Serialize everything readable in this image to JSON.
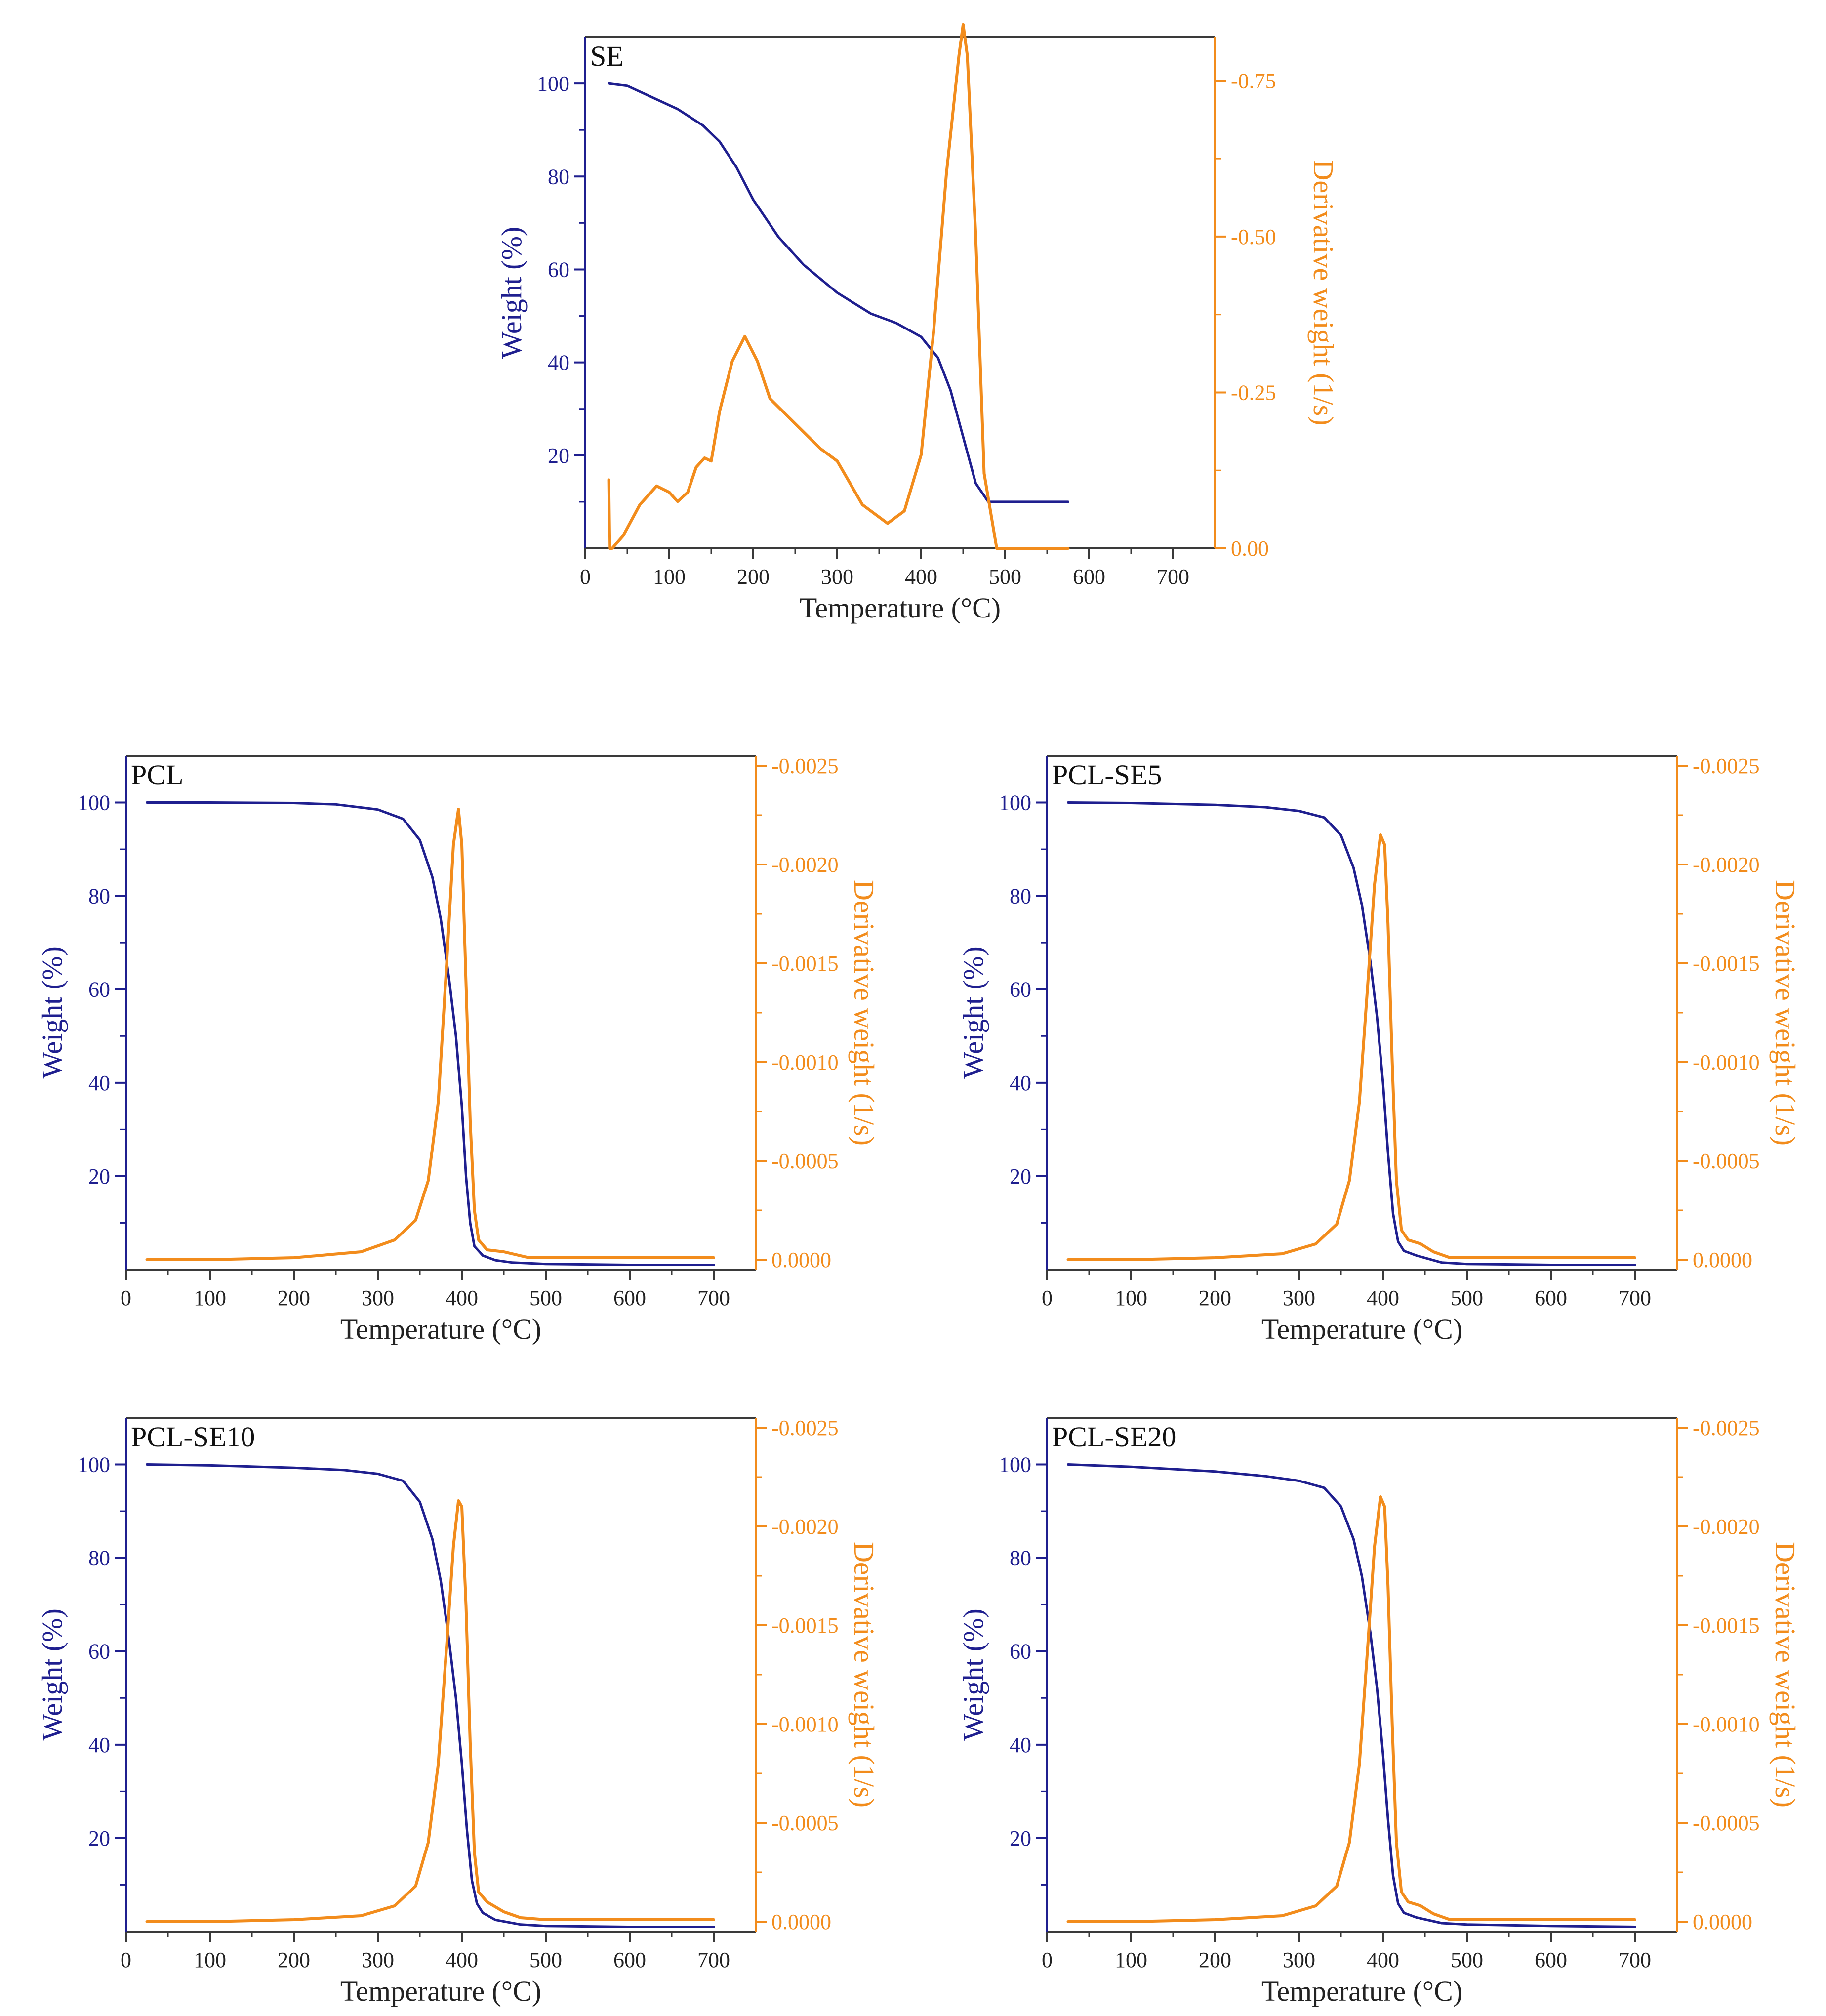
{
  "figure": {
    "colors": {
      "weight": "#1f1f8f",
      "derivative": "#f28c1c",
      "axis": "#3a3a3a"
    }
  },
  "chart_data": [
    {
      "type": "line",
      "id": "se",
      "panel_label": "SE",
      "xlabel": "Temperature (°C)",
      "ylabel_left": "Weight (%)",
      "ylabel_right": "Derivative weight (1/s)",
      "xlim": [
        0,
        750
      ],
      "ylim_left": [
        0,
        110
      ],
      "ylim_right": [
        0,
        -0.82
      ],
      "x_ticks": [
        0,
        100,
        200,
        300,
        400,
        500,
        600,
        700
      ],
      "x_tick_labels": [
        "0",
        "100",
        "200",
        "300",
        "400",
        "500",
        "600",
        "700"
      ],
      "y_left_ticks": [
        20,
        40,
        60,
        80,
        100
      ],
      "y_left_tick_labels": [
        "20",
        "40",
        "60",
        "80",
        "100"
      ],
      "y_right_ticks": [
        0,
        -0.25,
        -0.5,
        -0.75
      ],
      "y_right_tick_labels": [
        "0.00",
        "-0.25",
        "-0.50",
        "-0.75"
      ],
      "series": [
        {
          "name": "Weight",
          "axis": "left",
          "x": [
            28,
            50,
            80,
            110,
            140,
            160,
            180,
            200,
            230,
            260,
            300,
            340,
            370,
            400,
            420,
            435,
            450,
            465,
            480,
            500,
            540,
            575
          ],
          "y": [
            100,
            99.5,
            97,
            94.5,
            91,
            87.5,
            82,
            75,
            67,
            61,
            55,
            50.5,
            48.5,
            45.5,
            41,
            34,
            24,
            14,
            10,
            10,
            10,
            10
          ]
        },
        {
          "name": "Derivative weight",
          "axis": "right",
          "x": [
            28,
            29,
            32,
            45,
            65,
            85,
            100,
            110,
            122,
            132,
            142,
            150,
            160,
            175,
            190,
            205,
            220,
            250,
            280,
            300,
            330,
            360,
            380,
            400,
            415,
            430,
            445,
            450,
            455,
            465,
            475,
            490,
            520,
            575
          ],
          "y": [
            -0.11,
            0.0,
            0.0,
            -0.02,
            -0.07,
            -0.1,
            -0.09,
            -0.075,
            -0.09,
            -0.13,
            -0.145,
            -0.14,
            -0.22,
            -0.3,
            -0.34,
            -0.3,
            -0.24,
            -0.2,
            -0.16,
            -0.14,
            -0.07,
            -0.04,
            -0.06,
            -0.15,
            -0.35,
            -0.6,
            -0.79,
            -0.84,
            -0.79,
            -0.5,
            -0.12,
            0.0,
            0.0,
            0.0
          ]
        }
      ]
    },
    {
      "type": "line",
      "id": "pcl",
      "panel_label": "PCL",
      "xlabel": "Temperature (°C)",
      "ylabel_left": "Weight (%)",
      "ylabel_right": "Derivative weight (1/s)",
      "xlim": [
        0,
        750
      ],
      "ylim_left": [
        0,
        110
      ],
      "ylim_right": [
        5e-05,
        -0.00255
      ],
      "x_ticks": [
        0,
        100,
        200,
        300,
        400,
        500,
        600,
        700
      ],
      "x_tick_labels": [
        "0",
        "100",
        "200",
        "300",
        "400",
        "500",
        "600",
        "700"
      ],
      "y_left_ticks": [
        20,
        40,
        60,
        80,
        100
      ],
      "y_left_tick_labels": [
        "20",
        "40",
        "60",
        "80",
        "100"
      ],
      "y_right_ticks": [
        0,
        -0.0005,
        -0.001,
        -0.0015,
        -0.002,
        -0.0025
      ],
      "y_right_tick_labels": [
        "0.0000",
        "-0.0005",
        "-0.0010",
        "-0.0015",
        "-0.0020",
        "-0.0025"
      ],
      "series": [
        {
          "name": "Weight",
          "axis": "left",
          "x": [
            25,
            100,
            200,
            250,
            300,
            330,
            350,
            365,
            375,
            385,
            393,
            400,
            405,
            410,
            415,
            425,
            440,
            460,
            500,
            600,
            700
          ],
          "y": [
            100,
            100,
            99.9,
            99.6,
            98.5,
            96.5,
            92,
            84,
            75,
            62,
            50,
            35,
            20,
            10,
            5,
            3,
            2,
            1.5,
            1.2,
            1,
            1
          ]
        },
        {
          "name": "Derivative weight",
          "axis": "right",
          "x": [
            25,
            100,
            200,
            280,
            320,
            345,
            360,
            372,
            382,
            390,
            396,
            400,
            405,
            410,
            415,
            420,
            430,
            450,
            460,
            480,
            600,
            700
          ],
          "y": [
            0.0,
            0.0,
            -1e-05,
            -4e-05,
            -0.0001,
            -0.0002,
            -0.0004,
            -0.0008,
            -0.0015,
            -0.0021,
            -0.00228,
            -0.0021,
            -0.0014,
            -0.0007,
            -0.00025,
            -0.0001,
            -5e-05,
            -4e-05,
            -3e-05,
            -1e-05,
            -1e-05,
            -1e-05
          ]
        }
      ]
    },
    {
      "type": "line",
      "id": "pcl-se5",
      "panel_label": "PCL-SE5",
      "xlabel": "Temperature (°C)",
      "ylabel_left": "Weight (%)",
      "ylabel_right": "Derivative weight (1/s)",
      "xlim": [
        0,
        750
      ],
      "ylim_left": [
        0,
        110
      ],
      "ylim_right": [
        5e-05,
        -0.00255
      ],
      "x_ticks": [
        0,
        100,
        200,
        300,
        400,
        500,
        600,
        700
      ],
      "x_tick_labels": [
        "0",
        "100",
        "200",
        "300",
        "400",
        "500",
        "600",
        "700"
      ],
      "y_left_ticks": [
        20,
        40,
        60,
        80,
        100
      ],
      "y_left_tick_labels": [
        "20",
        "40",
        "60",
        "80",
        "100"
      ],
      "y_right_ticks": [
        0,
        -0.0005,
        -0.001,
        -0.0015,
        -0.002,
        -0.0025
      ],
      "y_right_tick_labels": [
        "0.0000",
        "-0.0005",
        "-0.0010",
        "-0.0015",
        "-0.0020",
        "-0.0025"
      ],
      "series": [
        {
          "name": "Weight",
          "axis": "left",
          "x": [
            25,
            100,
            200,
            260,
            300,
            330,
            350,
            365,
            375,
            385,
            393,
            400,
            406,
            412,
            418,
            425,
            440,
            470,
            500,
            600,
            700
          ],
          "y": [
            100,
            99.9,
            99.5,
            99,
            98.2,
            96.8,
            93,
            86,
            78,
            66,
            54,
            40,
            25,
            12,
            6,
            4,
            3,
            1.5,
            1.2,
            1,
            1
          ]
        },
        {
          "name": "Derivative weight",
          "axis": "right",
          "x": [
            25,
            100,
            200,
            280,
            320,
            345,
            360,
            372,
            382,
            390,
            397,
            402,
            406,
            411,
            416,
            422,
            430,
            445,
            460,
            480,
            600,
            700
          ],
          "y": [
            0.0,
            0.0,
            -1e-05,
            -3e-05,
            -8e-05,
            -0.00018,
            -0.0004,
            -0.0008,
            -0.0014,
            -0.0019,
            -0.00215,
            -0.0021,
            -0.0017,
            -0.001,
            -0.0004,
            -0.00015,
            -0.0001,
            -8e-05,
            -4e-05,
            -1e-05,
            -1e-05,
            -1e-05
          ]
        }
      ]
    },
    {
      "type": "line",
      "id": "pcl-se10",
      "panel_label": "PCL-SE10",
      "xlabel": "Temperature (°C)",
      "ylabel_left": "Weight (%)",
      "ylabel_right": "Derivative weight (1/s)",
      "xlim": [
        0,
        750
      ],
      "ylim_left": [
        0,
        110
      ],
      "ylim_right": [
        5e-05,
        -0.00255
      ],
      "x_ticks": [
        0,
        100,
        200,
        300,
        400,
        500,
        600,
        700
      ],
      "x_tick_labels": [
        "0",
        "100",
        "200",
        "300",
        "400",
        "500",
        "600",
        "700"
      ],
      "y_left_ticks": [
        20,
        40,
        60,
        80,
        100
      ],
      "y_left_tick_labels": [
        "20",
        "40",
        "60",
        "80",
        "100"
      ],
      "y_right_ticks": [
        0,
        -0.0005,
        -0.001,
        -0.0015,
        -0.002,
        -0.0025
      ],
      "y_right_tick_labels": [
        "0.0000",
        "-0.0005",
        "-0.0010",
        "-0.0015",
        "-0.0020",
        "-0.0025"
      ],
      "series": [
        {
          "name": "Weight",
          "axis": "left",
          "x": [
            25,
            100,
            200,
            260,
            300,
            330,
            350,
            365,
            375,
            385,
            393,
            400,
            406,
            412,
            418,
            425,
            440,
            470,
            500,
            600,
            700
          ],
          "y": [
            100,
            99.8,
            99.3,
            98.8,
            98,
            96.5,
            92,
            84,
            75,
            62,
            50,
            36,
            22,
            11,
            6,
            4,
            2.5,
            1.5,
            1.2,
            1,
            1
          ]
        },
        {
          "name": "Derivative weight",
          "axis": "right",
          "x": [
            25,
            100,
            200,
            280,
            320,
            345,
            360,
            372,
            382,
            390,
            396,
            400,
            405,
            410,
            415,
            420,
            430,
            450,
            470,
            500,
            600,
            700
          ],
          "y": [
            0.0,
            0.0,
            -1e-05,
            -3e-05,
            -8e-05,
            -0.00018,
            -0.0004,
            -0.0008,
            -0.0014,
            -0.0019,
            -0.00213,
            -0.0021,
            -0.0016,
            -0.0009,
            -0.00035,
            -0.00015,
            -0.0001,
            -5e-05,
            -2e-05,
            -1e-05,
            -1e-05,
            -1e-05
          ]
        }
      ]
    },
    {
      "type": "line",
      "id": "pcl-se20",
      "panel_label": "PCL-SE20",
      "xlabel": "Temperature (°C)",
      "ylabel_left": "Weight (%)",
      "ylabel_right": "Derivative weight (1/s)",
      "xlim": [
        0,
        750
      ],
      "ylim_left": [
        0,
        110
      ],
      "ylim_right": [
        5e-05,
        -0.00255
      ],
      "x_ticks": [
        0,
        100,
        200,
        300,
        400,
        500,
        600,
        700
      ],
      "x_tick_labels": [
        "0",
        "100",
        "200",
        "300",
        "400",
        "500",
        "600",
        "700"
      ],
      "y_left_ticks": [
        20,
        40,
        60,
        80,
        100
      ],
      "y_left_tick_labels": [
        "20",
        "40",
        "60",
        "80",
        "100"
      ],
      "y_right_ticks": [
        0,
        -0.0005,
        -0.001,
        -0.0015,
        -0.002,
        -0.0025
      ],
      "y_right_tick_labels": [
        "0.0000",
        "-0.0005",
        "-0.0010",
        "-0.0015",
        "-0.0020",
        "-0.0025"
      ],
      "series": [
        {
          "name": "Weight",
          "axis": "left",
          "x": [
            25,
            100,
            200,
            260,
            300,
            330,
            350,
            365,
            375,
            385,
            393,
            400,
            406,
            412,
            418,
            425,
            440,
            470,
            500,
            600,
            700
          ],
          "y": [
            100,
            99.5,
            98.5,
            97.5,
            96.5,
            95,
            91,
            84,
            76,
            64,
            52,
            38,
            24,
            12,
            6,
            4,
            3,
            1.8,
            1.5,
            1.2,
            1
          ]
        },
        {
          "name": "Derivative weight",
          "axis": "right",
          "x": [
            25,
            100,
            200,
            280,
            320,
            345,
            360,
            372,
            382,
            390,
            397,
            402,
            406,
            411,
            416,
            422,
            430,
            445,
            460,
            480,
            600,
            700
          ],
          "y": [
            0.0,
            0.0,
            -1e-05,
            -3e-05,
            -8e-05,
            -0.00018,
            -0.0004,
            -0.0008,
            -0.0014,
            -0.0019,
            -0.00215,
            -0.0021,
            -0.0017,
            -0.001,
            -0.0004,
            -0.00015,
            -0.0001,
            -8e-05,
            -4e-05,
            -1e-05,
            -1e-05,
            -1e-05
          ]
        }
      ]
    }
  ]
}
